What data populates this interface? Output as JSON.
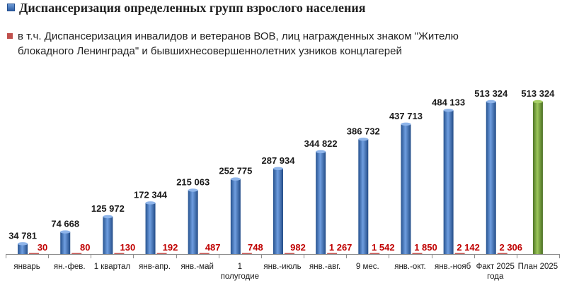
{
  "legend": {
    "series1": "Диспансеризация определенных групп взрослого населения",
    "series2_line1": "в т.ч. Диспансеризация инвалидов и ветеранов ВОВ, лиц награжденных знаком \"Жителю",
    "series2_line2": "блокадного Ленинграда\" и бывшихнесовершеннолетних  узников концлагерей"
  },
  "colors": {
    "series1": "#3a6bb3",
    "series2": "#c0504d",
    "plan": "#77a33b",
    "series2_label": "#c00000"
  },
  "chart_data": {
    "type": "bar",
    "categories": [
      [
        "январь"
      ],
      [
        "ян.-фев."
      ],
      [
        "1 квартал"
      ],
      [
        "янв-апр."
      ],
      [
        "янв.-май"
      ],
      [
        "1",
        "полугодие"
      ],
      [
        "янв.-июль"
      ],
      [
        "янв.-авг."
      ],
      [
        "9 мес."
      ],
      [
        "янв.-окт."
      ],
      [
        "янв.-нояб"
      ],
      [
        "Факт 2025",
        "года"
      ],
      [
        "План 2025"
      ]
    ],
    "series": [
      {
        "name": "Диспансеризация определенных групп взрослого населения",
        "values": [
          34781,
          74668,
          125972,
          172344,
          215063,
          252775,
          287934,
          344822,
          386732,
          437713,
          484133,
          513324,
          513324
        ],
        "labels": [
          "34 781",
          "74 668",
          "125 972",
          "172 344",
          "215 063",
          "252 775",
          "287 934",
          "344 822",
          "386 732",
          "437 713",
          "484 133",
          "513 324",
          "513 324"
        ]
      },
      {
        "name": "в т.ч. Диспансеризация инвалидов и ветеранов ВОВ, лиц награжденных знаком \"Жителю блокадного Ленинграда\" и бывшихнесовершеннолетних  узников концлагерей",
        "values": [
          30,
          80,
          130,
          192,
          487,
          748,
          982,
          1267,
          1542,
          1850,
          2142,
          2306,
          null
        ],
        "labels": [
          "30",
          "80",
          "130",
          "192",
          "487",
          "748",
          "982",
          "1 267",
          "1 542",
          "1 850",
          "2 142",
          "2 306",
          ""
        ]
      }
    ],
    "highlight": {
      "category_index": 12,
      "color_key": "plan"
    },
    "ylim": [
      0,
      540000
    ],
    "grid": false,
    "legend_position": "top-left"
  }
}
